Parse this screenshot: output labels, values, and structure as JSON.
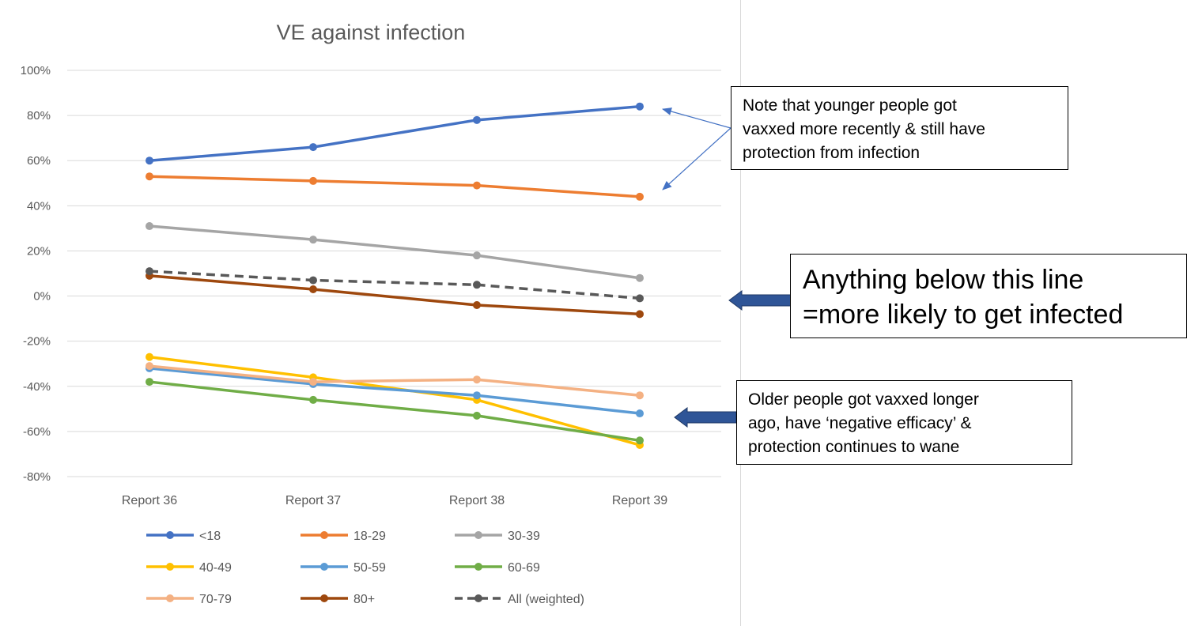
{
  "chart_data": {
    "type": "line",
    "title": "VE against infection",
    "categories": [
      "Report 36",
      "Report 37",
      "Report 38",
      "Report 39"
    ],
    "ylim": [
      -80,
      100
    ],
    "yticks": [
      100,
      80,
      60,
      40,
      20,
      0,
      -20,
      -40,
      -60,
      -80
    ],
    "ytick_labels": [
      "100%",
      "80%",
      "60%",
      "40%",
      "20%",
      "0%",
      "-20%",
      "-40%",
      "-60%",
      "-80%"
    ],
    "grid": true,
    "legend_position": "bottom",
    "series": [
      {
        "name": "<18",
        "color": "#4472C4",
        "dashed": false,
        "values": [
          60,
          66,
          78,
          84
        ]
      },
      {
        "name": "18-29",
        "color": "#ED7D31",
        "dashed": false,
        "values": [
          53,
          51,
          49,
          44
        ]
      },
      {
        "name": "30-39",
        "color": "#A5A5A5",
        "dashed": false,
        "values": [
          31,
          25,
          18,
          8
        ]
      },
      {
        "name": "40-49",
        "color": "#FFC000",
        "dashed": false,
        "values": [
          -27,
          -36,
          -46,
          -66
        ]
      },
      {
        "name": "50-59",
        "color": "#5B9BD5",
        "dashed": false,
        "values": [
          -32,
          -39,
          -44,
          -52
        ]
      },
      {
        "name": "60-69",
        "color": "#70AD47",
        "dashed": false,
        "values": [
          -38,
          -46,
          -53,
          -64
        ]
      },
      {
        "name": "70-79",
        "color": "#F4B183",
        "dashed": false,
        "values": [
          -31,
          -38,
          -37,
          -44
        ]
      },
      {
        "name": "80+",
        "color": "#9E480E",
        "dashed": false,
        "values": [
          9,
          3,
          -4,
          -8
        ]
      },
      {
        "name": "All (weighted)",
        "color": "#595959",
        "dashed": true,
        "values": [
          11,
          7,
          5,
          -1
        ]
      }
    ]
  },
  "annotations": {
    "younger_note": "Note that younger people got\nvaxxed more recently & still have\nprotection from infection",
    "below_line_note": "Anything below this line\n=more likely to get infected",
    "older_note": "Older people got vaxxed longer\nago, have ‘negative efficacy’ &\nprotection continues to wane"
  },
  "colors": {
    "arrow": "#4472C4",
    "block_arrow_fill": "#2F5597",
    "gridline": "#D9D9D9",
    "axis_text": "#595959"
  }
}
